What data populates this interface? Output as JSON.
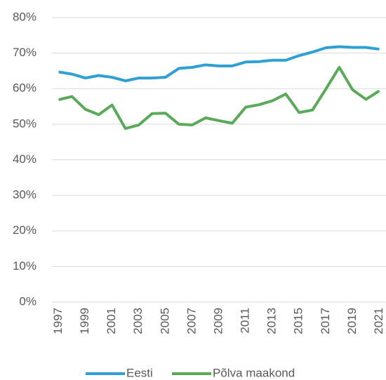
{
  "chart_data": {
    "type": "line",
    "categories": [
      "1997",
      null,
      "1999",
      null,
      "2001",
      null,
      "2003",
      null,
      "2005",
      null,
      "2007",
      null,
      "2009",
      null,
      "2011",
      null,
      "2013",
      null,
      "2015",
      null,
      "2017",
      null,
      "2019",
      null,
      "2021"
    ],
    "series": [
      {
        "name": "Eesti",
        "color": "#2f9fd4",
        "values": [
          64.7,
          64.1,
          63.0,
          63.7,
          63.2,
          62.2,
          63.0,
          63.0,
          63.2,
          65.7,
          66.0,
          66.7,
          66.4,
          66.4,
          67.5,
          67.6,
          68.0,
          68.0,
          69.3,
          70.3,
          71.5,
          71.8,
          71.6,
          71.6,
          71.1
        ]
      },
      {
        "name": "Põlva maakond",
        "color": "#5aaa5a",
        "values": [
          56.9,
          57.8,
          54.2,
          52.7,
          55.4,
          48.8,
          49.8,
          53.0,
          53.1,
          50.0,
          49.8,
          51.8,
          51.0,
          50.3,
          54.8,
          55.5,
          56.6,
          58.5,
          53.3,
          54.0,
          59.9,
          66.0,
          59.7,
          57.0,
          59.4
        ]
      }
    ],
    "ylim": [
      0,
      80
    ],
    "yticks": [
      {
        "value": 0,
        "label": "0%"
      },
      {
        "value": 10,
        "label": "10%"
      },
      {
        "value": 20,
        "label": "20%"
      },
      {
        "value": 30,
        "label": "30%"
      },
      {
        "value": 40,
        "label": "40%"
      },
      {
        "value": 50,
        "label": "50%"
      },
      {
        "value": 60,
        "label": "60%"
      },
      {
        "value": 70,
        "label": "70%"
      },
      {
        "value": 80,
        "label": "80%"
      }
    ],
    "grid": true,
    "legend": "bottom"
  }
}
